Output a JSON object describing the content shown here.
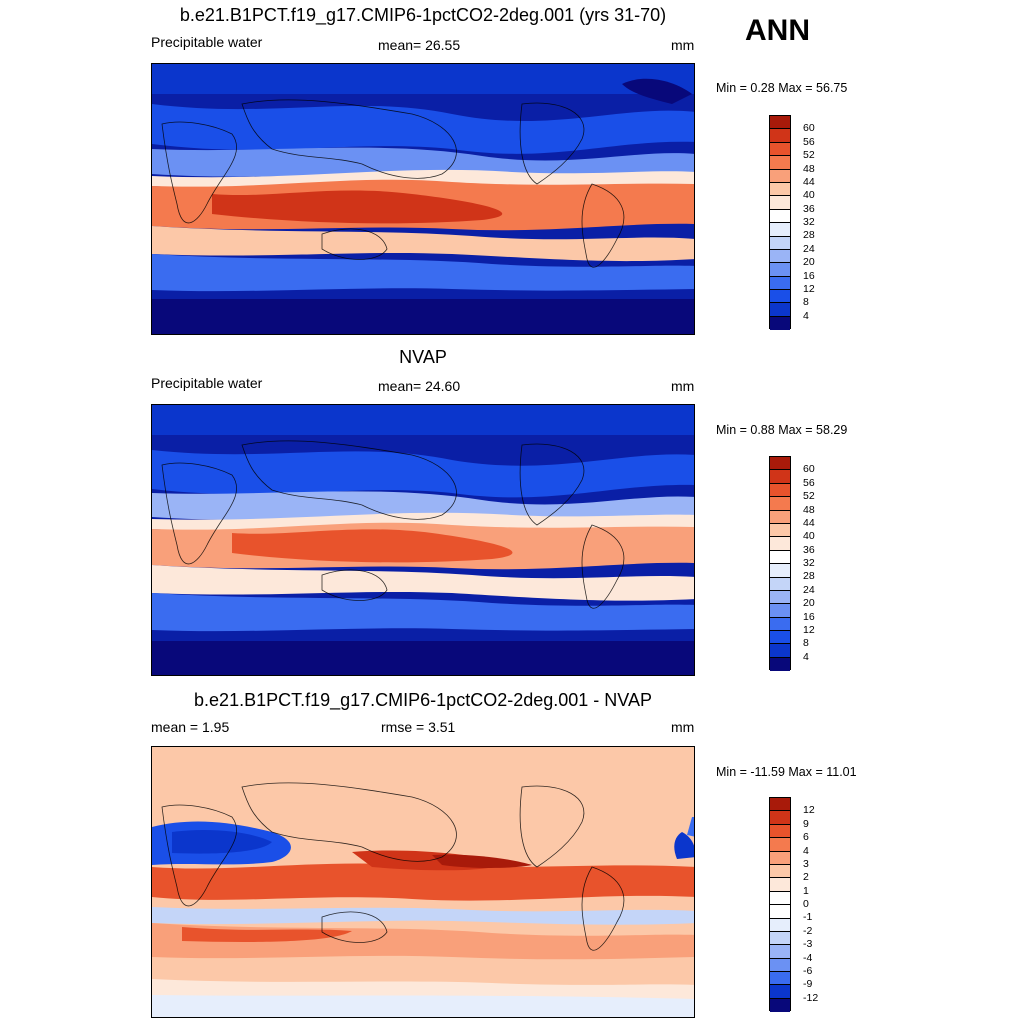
{
  "season": "ANN",
  "panels": [
    {
      "id": "model",
      "title": "b.e21.B1PCT.f19_g17.CMIP6-1pctCO2-2deg.001 (yrs 31-70)",
      "left_label": "Precipitable water",
      "center_label": "mean=  26.55",
      "right_label": "mm",
      "minmax": "Min =   0.28 Max =  56.75",
      "colorbar_labels": [
        "60",
        "56",
        "52",
        "48",
        "44",
        "40",
        "36",
        "32",
        "28",
        "24",
        "20",
        "16",
        "12",
        "8",
        "4"
      ]
    },
    {
      "id": "obs",
      "title": "NVAP",
      "left_label": "Precipitable water",
      "center_label": "mean=  24.60",
      "right_label": "mm",
      "minmax": "Min =   0.88 Max =  58.29",
      "colorbar_labels": [
        "60",
        "56",
        "52",
        "48",
        "44",
        "40",
        "36",
        "32",
        "28",
        "24",
        "20",
        "16",
        "12",
        "8",
        "4"
      ]
    },
    {
      "id": "diff",
      "title": "b.e21.B1PCT.f19_g17.CMIP6-1pctCO2-2deg.001 - NVAP",
      "left_label": "mean =   1.95",
      "center_label": "rmse =   3.51",
      "right_label": "mm",
      "minmax": "Min = -11.59 Max =  11.01",
      "colorbar_labels": [
        "12",
        "9",
        "6",
        "4",
        "3",
        "2",
        "1",
        "0",
        "-1",
        "-2",
        "-3",
        "-4",
        "-6",
        "-9",
        "-12"
      ]
    }
  ],
  "colors": {
    "abs_scale": [
      "#08087a",
      "#0a1fa6",
      "#0b36cc",
      "#1a4fe8",
      "#3a6cf0",
      "#6b91f3",
      "#9ab4f6",
      "#c4d5f8",
      "#e6eefc",
      "#fde8da",
      "#fcc8a8",
      "#f9a07a",
      "#f47a4e",
      "#e8532c",
      "#d03418",
      "#a81a0a"
    ],
    "diff_scale": [
      "#08087a",
      "#0a1fa6",
      "#0b36cc",
      "#1a4fe8",
      "#3a6cf0",
      "#6b91f3",
      "#9ab4f6",
      "#c4d5f8",
      "#e6eefc",
      "#fde8da",
      "#fcc8a8",
      "#f9a07a",
      "#f47a4e",
      "#e8532c",
      "#d03418",
      "#a81a0a"
    ]
  }
}
